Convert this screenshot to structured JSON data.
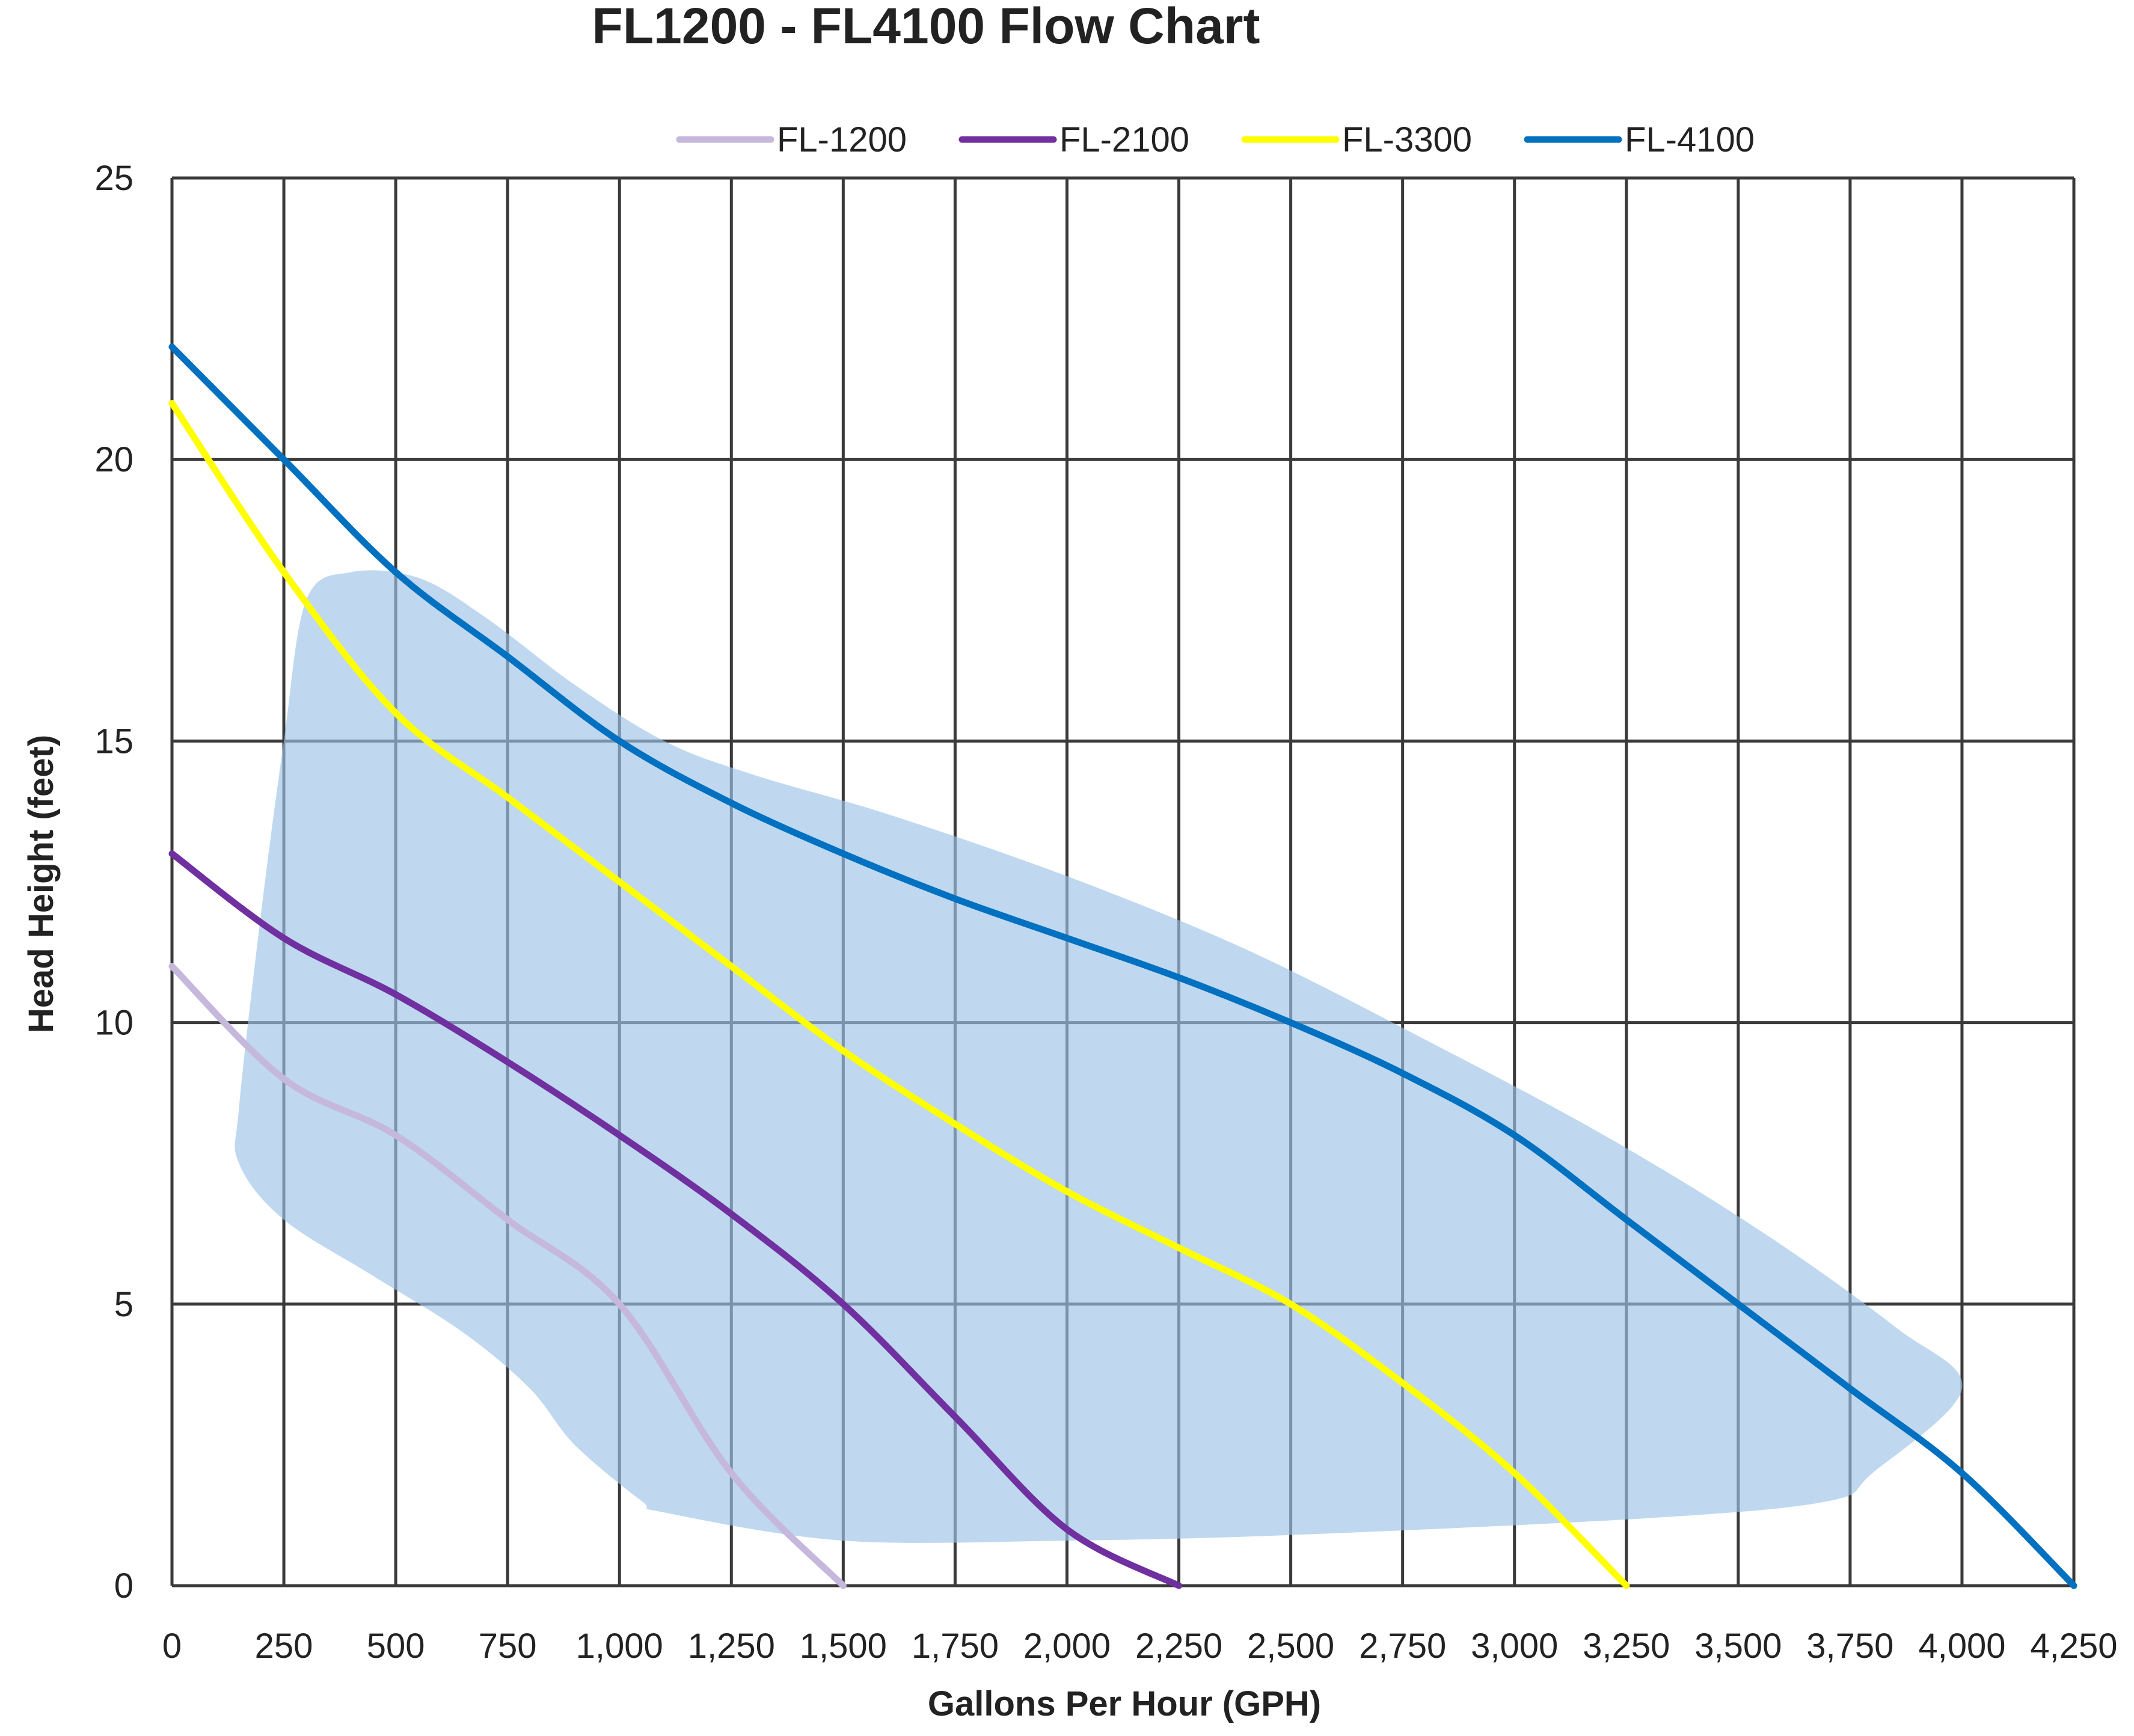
{
  "chart_data": {
    "type": "line",
    "title": "FL1200 - FL4100 Flow Chart",
    "xlabel": "Gallons Per Hour (GPH)",
    "ylabel": "Head Height (feet)",
    "xlim": [
      0,
      4250
    ],
    "ylim": [
      0,
      25
    ],
    "x_ticks": [
      0,
      250,
      500,
      750,
      1000,
      1250,
      1500,
      1750,
      2000,
      2250,
      2500,
      2750,
      3000,
      3250,
      3500,
      3750,
      4000,
      4250
    ],
    "x_tick_labels": [
      "0",
      "250",
      "500",
      "750",
      "1,000",
      "1,250",
      "1,500",
      "1,750",
      "2,000",
      "2,250",
      "2,500",
      "2,750",
      "3,000",
      "3,250",
      "3,500",
      "3,750",
      "4,000",
      "4,250"
    ],
    "y_ticks": [
      0,
      5,
      10,
      15,
      20,
      25
    ],
    "y_tick_labels": [
      "0",
      "5",
      "10",
      "15",
      "20",
      "25"
    ],
    "grid": true,
    "legend_position": "top",
    "series": [
      {
        "name": "FL-1200",
        "color": "#c5b8dc",
        "x": [
          0,
          250,
          500,
          750,
          1000,
          1250,
          1500
        ],
        "y": [
          11,
          9,
          8,
          6.5,
          5,
          2,
          0
        ]
      },
      {
        "name": "FL-2100",
        "color": "#7030a0",
        "x": [
          0,
          250,
          500,
          750,
          1000,
          1250,
          1500,
          1750,
          2000,
          2250
        ],
        "y": [
          13,
          11.5,
          10.5,
          9.3,
          8,
          6.6,
          5,
          3,
          1,
          0
        ]
      },
      {
        "name": "FL-3300",
        "color": "#ffff00",
        "x": [
          0,
          250,
          500,
          750,
          1000,
          1250,
          1500,
          1750,
          2000,
          2250,
          2500,
          2750,
          3000,
          3250
        ],
        "y": [
          21,
          18,
          15.5,
          14,
          12.5,
          11,
          9.5,
          8.2,
          7,
          6,
          5,
          3.6,
          2,
          0
        ]
      },
      {
        "name": "FL-4100",
        "color": "#0070c0",
        "x": [
          0,
          250,
          500,
          750,
          1000,
          1250,
          1500,
          1750,
          2000,
          2250,
          2500,
          2750,
          3000,
          3250,
          3500,
          3750,
          4000,
          4250
        ],
        "y": [
          22,
          20,
          18,
          16.5,
          15,
          13.9,
          13,
          12.2,
          11.5,
          10.8,
          10,
          9.1,
          8,
          6.5,
          5,
          3.5,
          2,
          0
        ]
      }
    ],
    "shaded_region": {
      "color": "#9dc3e6",
      "opacity": 0.65,
      "x": [
        300,
        400,
        550,
        700,
        900,
        1100,
        1300,
        1600,
        2000,
        2400,
        2800,
        3200,
        3550,
        3850,
        4000,
        3800,
        3700,
        3300,
        2500,
        2000,
        1500,
        1100,
        1050,
        900,
        800,
        650,
        450,
        250,
        150,
        150,
        200,
        250
      ],
      "y": [
        17.5,
        18,
        17.9,
        17.2,
        16,
        15,
        14.4,
        13.7,
        12.6,
        11.3,
        9.7,
        8,
        6.3,
        4.6,
        3.5,
        2,
        1.5,
        1.2,
        0.9,
        0.8,
        0.8,
        1.3,
        1.5,
        2.5,
        3.5,
        4.5,
        5.5,
        6.5,
        7.5,
        8.5,
        12,
        15
      ]
    }
  }
}
